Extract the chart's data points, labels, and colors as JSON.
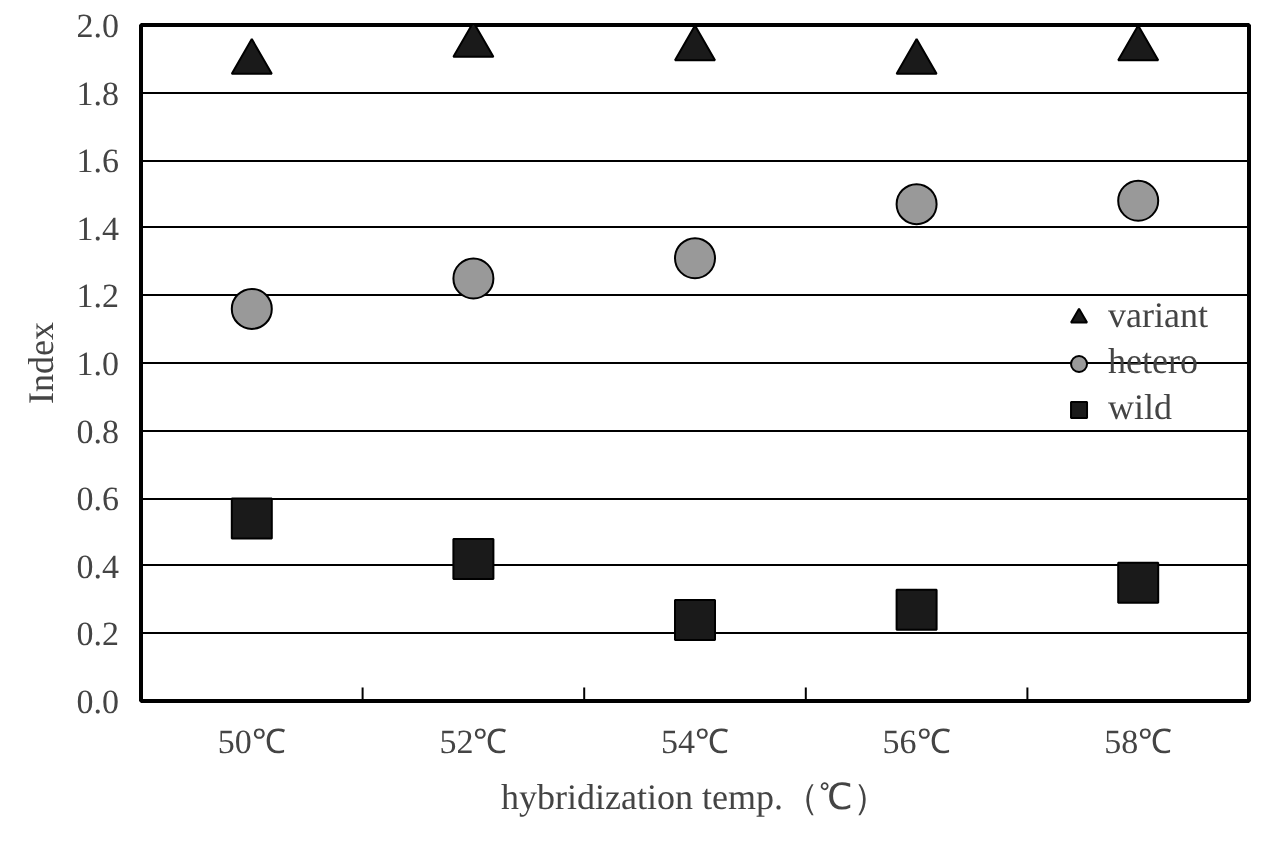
{
  "chart_data": {
    "type": "scatter",
    "xlabel": "hybridization temp.（℃）",
    "ylabel": "Index",
    "categories": [
      "50℃",
      "52℃",
      "54℃",
      "56℃",
      "58℃"
    ],
    "ylim": [
      0,
      2.0
    ],
    "yticks": [
      {
        "value": 0,
        "label": "0.0"
      },
      {
        "value": 0.2,
        "label": "0.2"
      },
      {
        "value": 0.4,
        "label": "0.4"
      },
      {
        "value": 0.6,
        "label": "0.6"
      },
      {
        "value": 0.8,
        "label": "0.8"
      },
      {
        "value": 1.0,
        "label": "1.0"
      },
      {
        "value": 1.2,
        "label": "1.2"
      },
      {
        "value": 1.4,
        "label": "1.4"
      },
      {
        "value": 1.6,
        "label": "1.6"
      },
      {
        "value": 1.8,
        "label": "1.8"
      },
      {
        "value": 2.0,
        "label": "2.0"
      }
    ],
    "grid": "y",
    "legend": "right",
    "series": [
      {
        "name": "variant",
        "color": "#1a1a1a",
        "marker": "triangle",
        "values": [
          1.89,
          1.94,
          1.93,
          1.89,
          1.93
        ]
      },
      {
        "name": "hetero",
        "color": "#999999",
        "marker": "circle",
        "values": [
          1.16,
          1.25,
          1.31,
          1.47,
          1.48
        ]
      },
      {
        "name": "wild",
        "color": "#1a1a1a",
        "marker": "square",
        "values": [
          0.54,
          0.42,
          0.24,
          0.27,
          0.35
        ]
      }
    ]
  }
}
